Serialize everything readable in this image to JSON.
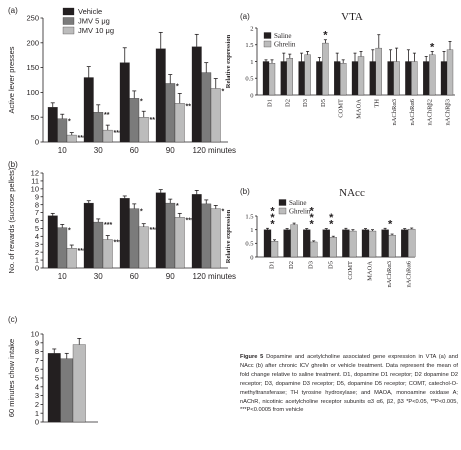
{
  "caption": {
    "label": "Figure 5",
    "text": "Dopamine and acetylcholine associated gene expression in VTA (a) and NAcc (b) after chronic ICV ghrelin or vehicle treatment. Data represent the mean of fold change relative to saline treatment. D1, dopamine D1 receptor; D2 dopamine D2 receptor; D3, dopamine D3 receptor; D5, dopamine D5 receptor; COMT, catechol-O-methyltransferase; TH tyrosine hydroxylase; and MAOA, monoamine oxidase A; nAChR, nicotinic acetylcholine receptor subunits α3 α6, β2, β3 *P<0.05, **P<0.005, ***P<0.0005 from vehicle"
  },
  "chart_data": [
    {
      "id": "left-a",
      "panel_label": "(a)",
      "type": "bar",
      "ylabel": "Active lever presses",
      "categories": [
        "10",
        "30",
        "60",
        "90",
        "120 minutes"
      ],
      "ylim": [
        0,
        250
      ],
      "yticks": [
        0,
        50,
        100,
        150,
        200,
        250
      ],
      "legend": [
        "Vehicle",
        "JMV 5 μg",
        "JMV 10 μg"
      ],
      "colors": [
        "#231f20",
        "#7b7b7b",
        "#bcbcbc"
      ],
      "series": [
        {
          "name": "Vehicle",
          "values": [
            70,
            130,
            160,
            188,
            192
          ],
          "errors": [
            9,
            22,
            30,
            33,
            25
          ]
        },
        {
          "name": "JMV 5 μg",
          "values": [
            47,
            60,
            88,
            118,
            140
          ],
          "errors": [
            9,
            15,
            15,
            18,
            20
          ]
        },
        {
          "name": "JMV 10 μg",
          "values": [
            14,
            24,
            50,
            78,
            108
          ],
          "errors": [
            5,
            10,
            12,
            20,
            20
          ]
        }
      ],
      "significance": [
        [
          "",
          "*",
          "***"
        ],
        [
          "",
          "**",
          "***"
        ],
        [
          "",
          "*",
          "**"
        ],
        [
          "",
          "*",
          "**"
        ],
        [
          "",
          "",
          "*"
        ]
      ]
    },
    {
      "id": "left-b",
      "panel_label": "(b)",
      "type": "bar",
      "ylabel": "No. of rewards (sucrose pellets)",
      "categories": [
        "10",
        "30",
        "60",
        "90",
        "120 minutes"
      ],
      "ylim": [
        0,
        12
      ],
      "yticks": [
        0,
        1,
        2,
        3,
        4,
        5,
        6,
        7,
        8,
        9,
        10,
        11,
        12
      ],
      "series": [
        {
          "name": "Vehicle",
          "values": [
            6.6,
            8.2,
            8.8,
            9.5,
            9.3
          ],
          "errors": [
            0.3,
            0.3,
            0.3,
            0.4,
            0.5
          ]
        },
        {
          "name": "JMV 5 μg",
          "values": [
            5.1,
            5.8,
            7.5,
            8.2,
            8.1
          ],
          "errors": [
            0.4,
            0.4,
            0.6,
            0.5,
            0.5
          ]
        },
        {
          "name": "JMV 10 μg",
          "values": [
            2.5,
            3.6,
            5.2,
            6.4,
            7.5
          ],
          "errors": [
            0.4,
            0.5,
            0.4,
            0.5,
            0.4
          ]
        }
      ],
      "significance": [
        [
          "",
          "*",
          "***"
        ],
        [
          "",
          "***",
          "***"
        ],
        [
          "",
          "*",
          "***"
        ],
        [
          "",
          "*",
          "***"
        ],
        [
          "",
          "",
          "*"
        ]
      ]
    },
    {
      "id": "left-c",
      "panel_label": "(c)",
      "type": "bar",
      "ylabel": "60 minutes chow intake",
      "ylim": [
        0,
        10
      ],
      "yticks": [
        0,
        1,
        2,
        3,
        4,
        5,
        6,
        7,
        8,
        9,
        10
      ],
      "series": [
        {
          "name": "Vehicle",
          "values": [
            7.8
          ],
          "errors": [
            0.5
          ]
        },
        {
          "name": "JMV 5 μg",
          "values": [
            7.2
          ],
          "errors": [
            0.6
          ]
        },
        {
          "name": "JMV 10 μg",
          "values": [
            8.8
          ],
          "errors": [
            0.7
          ]
        }
      ]
    },
    {
      "id": "right-a",
      "panel_label": "(a)",
      "title": "VTA",
      "type": "bar",
      "ylabel": "Relative expression",
      "categories": [
        "D1",
        "D2",
        "D3",
        "D5",
        "COMT",
        "MAOA",
        "TH",
        "nAChRα3",
        "nAChRα6",
        "nAChRβ2",
        "nAChRβ3"
      ],
      "ylim": [
        0,
        2
      ],
      "yticks": [
        "0",
        "0.5",
        "1",
        "1.5",
        "2"
      ],
      "legend": [
        "Saline",
        "Ghrelin"
      ],
      "colors": [
        "#231f20",
        "#bcbcbc"
      ],
      "series": [
        {
          "name": "Saline",
          "values": [
            1,
            1,
            1,
            1,
            1,
            1,
            1,
            1,
            1,
            1,
            1
          ],
          "errors": [
            0.05,
            0.25,
            0.25,
            0.12,
            0.25,
            0.25,
            0.35,
            0.35,
            0.35,
            0.15,
            0.3
          ]
        },
        {
          "name": "Ghrelin",
          "values": [
            0.95,
            1.1,
            1.2,
            1.55,
            0.95,
            1.15,
            1.4,
            1.0,
            1.0,
            1.2,
            1.35
          ],
          "errors": [
            0.1,
            0.12,
            0.1,
            0.1,
            0.1,
            0.15,
            0.4,
            0.4,
            0.25,
            0.1,
            0.25
          ]
        }
      ],
      "significance": [
        "",
        "",
        "",
        "*",
        "",
        "",
        "",
        "",
        "",
        "*",
        ""
      ]
    },
    {
      "id": "right-b",
      "panel_label": "(b)",
      "title": "NAcc",
      "type": "bar",
      "ylabel": "Relative expression",
      "categories": [
        "D1",
        "D2",
        "D3",
        "D5",
        "COMT",
        "MAOA",
        "nAChRα3",
        "nAChRα6"
      ],
      "ylim": [
        0,
        1.5
      ],
      "yticks": [
        "0",
        "0.5",
        "1",
        "1.5"
      ],
      "legend": [
        "Saline",
        "Ghrelin"
      ],
      "colors": [
        "#231f20",
        "#bcbcbc"
      ],
      "series": [
        {
          "name": "Saline",
          "values": [
            1,
            1,
            1,
            1,
            1,
            1,
            1,
            1
          ],
          "errors": [
            0.05,
            0.04,
            0.04,
            0.04,
            0.05,
            0.04,
            0.05,
            0.04
          ]
        },
        {
          "name": "Ghrelin",
          "values": [
            0.58,
            1.18,
            0.55,
            0.72,
            0.95,
            0.95,
            0.8,
            1.02
          ],
          "errors": [
            0.05,
            0.06,
            0.04,
            0.04,
            0.05,
            0.05,
            0.04,
            0.04
          ]
        }
      ],
      "significance": [
        "***",
        "",
        "***",
        "**",
        "",
        "",
        "*",
        ""
      ]
    }
  ]
}
